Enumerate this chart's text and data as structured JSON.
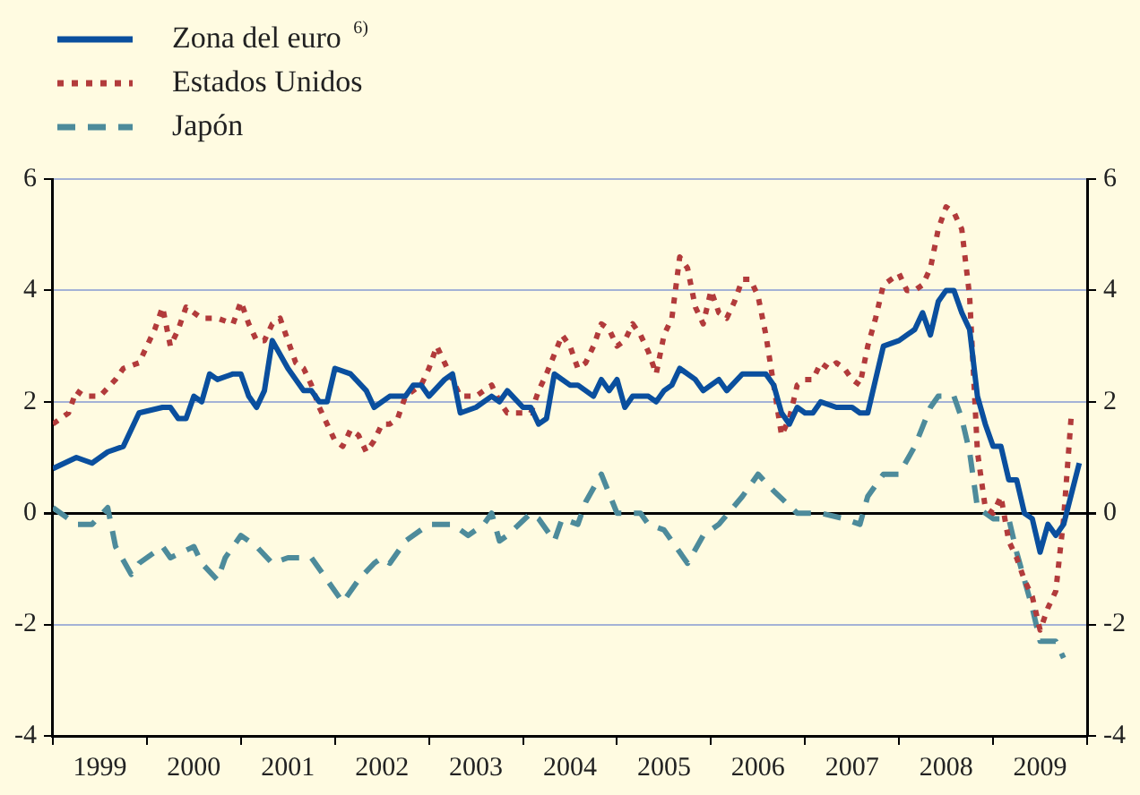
{
  "chart_data": {
    "type": "line",
    "xlim": [
      "1999-01",
      "2010-01"
    ],
    "xticks": [
      {
        "value": "1999-01",
        "label": null
      },
      {
        "value": "1999-07",
        "label": "1999"
      },
      {
        "value": "2000-01",
        "label": null
      },
      {
        "value": "2000-07",
        "label": "2000"
      },
      {
        "value": "2001-01",
        "label": null
      },
      {
        "value": "2001-07",
        "label": "2001"
      },
      {
        "value": "2002-01",
        "label": null
      },
      {
        "value": "2002-07",
        "label": "2002"
      },
      {
        "value": "2003-01",
        "label": null
      },
      {
        "value": "2003-07",
        "label": "2003"
      },
      {
        "value": "2004-01",
        "label": null
      },
      {
        "value": "2004-07",
        "label": "2004"
      },
      {
        "value": "2005-01",
        "label": null
      },
      {
        "value": "2005-07",
        "label": "2005"
      },
      {
        "value": "2006-01",
        "label": null
      },
      {
        "value": "2006-07",
        "label": "2006"
      },
      {
        "value": "2007-01",
        "label": null
      },
      {
        "value": "2007-07",
        "label": "2007"
      },
      {
        "value": "2008-01",
        "label": null
      },
      {
        "value": "2008-07",
        "label": "2008"
      },
      {
        "value": "2009-01",
        "label": null
      },
      {
        "value": "2009-07",
        "label": "2009"
      },
      {
        "value": "2010-01",
        "label": null
      }
    ],
    "ylim": [
      -4,
      6
    ],
    "yticks": [
      -4,
      -2,
      0,
      2,
      4,
      6
    ],
    "y2lim": [
      -4,
      6
    ],
    "y2ticks": [
      -4,
      -2,
      0,
      2,
      4,
      6
    ],
    "grid": "y",
    "legend": "top left",
    "series": [
      {
        "name": "Zona del euro $^{6)}$",
        "color": "#0a4f9e",
        "line_style": "solid",
        "x": [
          "1999-01",
          "1999-04",
          "1999-06",
          "1999-08",
          "1999-10",
          "1999-12",
          "2000-03",
          "2000-04",
          "2000-05",
          "2000-06",
          "2000-07",
          "2000-08",
          "2000-09",
          "2000-10",
          "2000-12",
          "2001-01",
          "2001-02",
          "2001-03",
          "2001-04",
          "2001-05",
          "2001-07",
          "2001-09",
          "2001-10",
          "2001-11",
          "2001-12",
          "2002-01",
          "2002-03",
          "2002-05",
          "2002-06",
          "2002-08",
          "2002-10",
          "2002-11",
          "2002-12",
          "2003-01",
          "2003-03",
          "2003-04",
          "2003-05",
          "2003-07",
          "2003-09",
          "2003-10",
          "2003-11",
          "2004-01",
          "2004-02",
          "2004-03",
          "2004-04",
          "2004-05",
          "2004-07",
          "2004-08",
          "2004-10",
          "2004-11",
          "2004-12",
          "2005-01",
          "2005-02",
          "2005-03",
          "2005-05",
          "2005-06",
          "2005-07",
          "2005-08",
          "2005-09",
          "2005-11",
          "2005-12",
          "2006-02",
          "2006-03",
          "2006-05",
          "2006-06",
          "2006-08",
          "2006-09",
          "2006-10",
          "2006-11",
          "2006-12",
          "2007-01",
          "2007-02",
          "2007-03",
          "2007-05",
          "2007-07",
          "2007-08",
          "2007-09",
          "2007-10",
          "2007-11",
          "2008-01",
          "2008-02",
          "2008-03",
          "2008-04",
          "2008-05",
          "2008-06",
          "2008-07",
          "2008-08",
          "2008-09",
          "2008-10",
          "2008-11",
          "2008-12",
          "2009-01",
          "2009-02",
          "2009-03",
          "2009-04",
          "2009-05",
          "2009-06",
          "2009-07",
          "2009-08",
          "2009-09",
          "2009-10",
          "2009-12"
        ],
        "values": [
          0.8,
          1.0,
          0.9,
          1.1,
          1.2,
          1.8,
          1.9,
          1.9,
          1.7,
          1.7,
          2.1,
          2.0,
          2.5,
          2.4,
          2.5,
          2.5,
          2.1,
          1.9,
          2.2,
          3.1,
          2.6,
          2.2,
          2.2,
          2.0,
          2.0,
          2.6,
          2.5,
          2.2,
          1.9,
          2.1,
          2.1,
          2.3,
          2.3,
          2.1,
          2.4,
          2.5,
          1.8,
          1.9,
          2.1,
          2.0,
          2.2,
          1.9,
          1.9,
          1.6,
          1.7,
          2.5,
          2.3,
          2.3,
          2.1,
          2.4,
          2.2,
          2.4,
          1.9,
          2.1,
          2.1,
          2.0,
          2.2,
          2.3,
          2.6,
          2.4,
          2.2,
          2.4,
          2.2,
          2.5,
          2.5,
          2.5,
          2.3,
          1.8,
          1.6,
          1.9,
          1.8,
          1.8,
          2.0,
          1.9,
          1.9,
          1.8,
          1.8,
          2.4,
          3.0,
          3.1,
          3.2,
          3.3,
          3.6,
          3.2,
          3.8,
          4.0,
          4.0,
          3.6,
          3.3,
          2.1,
          1.6,
          1.2,
          1.2,
          0.6,
          0.6,
          0.0,
          -0.1,
          -0.7,
          -0.2,
          -0.4,
          -0.2,
          0.9
        ]
      },
      {
        "name": "Estados Unidos",
        "color": "#b23b3b",
        "line_style": "dotted",
        "x": [
          "1999-01",
          "1999-03",
          "1999-04",
          "1999-05",
          "1999-07",
          "1999-09",
          "1999-10",
          "1999-12",
          "2000-01",
          "2000-02",
          "2000-03",
          "2000-04",
          "2000-05",
          "2000-06",
          "2000-08",
          "2000-10",
          "2000-12",
          "2001-01",
          "2001-02",
          "2001-03",
          "2001-04",
          "2001-05",
          "2001-06",
          "2001-07",
          "2001-08",
          "2001-09",
          "2001-10",
          "2001-11",
          "2001-12",
          "2002-01",
          "2002-02",
          "2002-03",
          "2002-04",
          "2002-05",
          "2002-06",
          "2002-07",
          "2002-08",
          "2002-09",
          "2002-10",
          "2002-12",
          "2003-01",
          "2003-02",
          "2003-03",
          "2003-04",
          "2003-05",
          "2003-07",
          "2003-09",
          "2003-10",
          "2003-11",
          "2004-01",
          "2004-02",
          "2004-03",
          "2004-04",
          "2004-06",
          "2004-07",
          "2004-08",
          "2004-09",
          "2004-10",
          "2004-11",
          "2004-12",
          "2005-01",
          "2005-02",
          "2005-03",
          "2005-04",
          "2005-05",
          "2005-06",
          "2005-07",
          "2005-08",
          "2005-09",
          "2005-10",
          "2005-11",
          "2005-12",
          "2006-01",
          "2006-02",
          "2006-03",
          "2006-04",
          "2006-05",
          "2006-06",
          "2006-07",
          "2006-08",
          "2006-09",
          "2006-10",
          "2006-11",
          "2006-12",
          "2007-01",
          "2007-02",
          "2007-03",
          "2007-04",
          "2007-05",
          "2007-06",
          "2007-07",
          "2007-08",
          "2007-09",
          "2007-10",
          "2007-11",
          "2007-12",
          "2008-01",
          "2008-02",
          "2008-03",
          "2008-04",
          "2008-05",
          "2008-06",
          "2008-07",
          "2008-08",
          "2008-09",
          "2008-10",
          "2008-11",
          "2008-12",
          "2009-01",
          "2009-02",
          "2009-03",
          "2009-04",
          "2009-05",
          "2009-06",
          "2009-07",
          "2009-08",
          "2009-09",
          "2009-10",
          "2009-11"
        ],
        "values": [
          1.6,
          1.8,
          2.2,
          2.1,
          2.1,
          2.4,
          2.6,
          2.7,
          3.0,
          3.3,
          3.7,
          3.0,
          3.3,
          3.7,
          3.5,
          3.5,
          3.4,
          3.8,
          3.4,
          3.1,
          3.1,
          3.4,
          3.5,
          3.1,
          2.7,
          2.6,
          2.3,
          1.9,
          1.6,
          1.3,
          1.2,
          1.5,
          1.4,
          1.1,
          1.3,
          1.6,
          1.6,
          1.7,
          2.1,
          2.3,
          2.6,
          3.0,
          2.7,
          2.4,
          2.1,
          2.1,
          2.3,
          2.0,
          1.8,
          1.8,
          1.8,
          2.2,
          2.5,
          3.2,
          3.0,
          2.6,
          2.7,
          3.0,
          3.4,
          3.3,
          3.0,
          3.1,
          3.4,
          3.2,
          2.9,
          2.5,
          3.2,
          3.5,
          4.6,
          4.4,
          3.7,
          3.4,
          4.0,
          3.6,
          3.5,
          3.8,
          4.2,
          4.2,
          3.9,
          3.2,
          2.3,
          1.4,
          1.7,
          2.3,
          2.4,
          2.4,
          2.7,
          2.6,
          2.7,
          2.6,
          2.4,
          2.3,
          3.0,
          3.5,
          4.1,
          4.2,
          4.3,
          4.0,
          4.0,
          4.1,
          4.4,
          5.1,
          5.5,
          5.4,
          5.1,
          3.9,
          1.1,
          0.1,
          0.0,
          0.3,
          -0.5,
          -0.8,
          -1.2,
          -1.5,
          -2.1,
          -1.7,
          -1.4,
          -0.1,
          1.8
        ]
      },
      {
        "name": "Japón",
        "color": "#4d8b9b",
        "line_style": "dashed",
        "x": [
          "1999-01",
          "1999-04",
          "1999-06",
          "1999-08",
          "1999-09",
          "1999-11",
          "1999-12",
          "2000-03",
          "2000-04",
          "2000-07",
          "2000-08",
          "2000-10",
          "2000-11",
          "2001-01",
          "2001-03",
          "2001-05",
          "2001-07",
          "2001-10",
          "2002-02",
          "2002-04",
          "2002-06",
          "2002-07",
          "2002-08",
          "2002-10",
          "2003-01",
          "2003-04",
          "2003-06",
          "2003-08",
          "2003-09",
          "2003-10",
          "2003-11",
          "2004-02",
          "2004-03",
          "2004-05",
          "2004-06",
          "2004-08",
          "2004-09",
          "2004-11",
          "2005-01",
          "2005-04",
          "2005-05",
          "2005-07",
          "2005-10",
          "2005-12",
          "2006-02",
          "2006-05",
          "2006-07",
          "2006-09",
          "2006-12",
          "2007-03",
          "2007-06",
          "2007-08",
          "2007-09",
          "2007-11",
          "2008-01",
          "2008-03",
          "2008-05",
          "2008-06",
          "2008-08",
          "2008-09",
          "2008-10",
          "2008-11",
          "2009-01",
          "2009-03",
          "2009-04",
          "2009-05",
          "2009-06",
          "2009-07",
          "2009-08",
          "2009-09",
          "2009-10"
        ],
        "values": [
          0.1,
          -0.2,
          -0.2,
          0.1,
          -0.6,
          -1.1,
          -0.9,
          -0.6,
          -0.8,
          -0.6,
          -0.9,
          -1.2,
          -0.8,
          -0.4,
          -0.6,
          -0.9,
          -0.8,
          -0.8,
          -1.6,
          -1.2,
          -0.9,
          -0.8,
          -0.9,
          -0.5,
          -0.2,
          -0.2,
          -0.4,
          -0.2,
          0.0,
          -0.5,
          -0.4,
          0.0,
          -0.1,
          -0.5,
          -0.1,
          -0.2,
          0.2,
          0.7,
          0.0,
          0.0,
          -0.2,
          -0.3,
          -0.9,
          -0.4,
          -0.2,
          0.3,
          0.7,
          0.4,
          0.0,
          0.0,
          -0.1,
          -0.2,
          0.3,
          0.7,
          0.7,
          1.2,
          1.9,
          2.1,
          2.1,
          1.7,
          1.1,
          0.1,
          -0.1,
          -0.1,
          -0.7,
          -1.2,
          -1.7,
          -2.3,
          -2.3,
          -2.3,
          -2.6
        ]
      }
    ]
  }
}
